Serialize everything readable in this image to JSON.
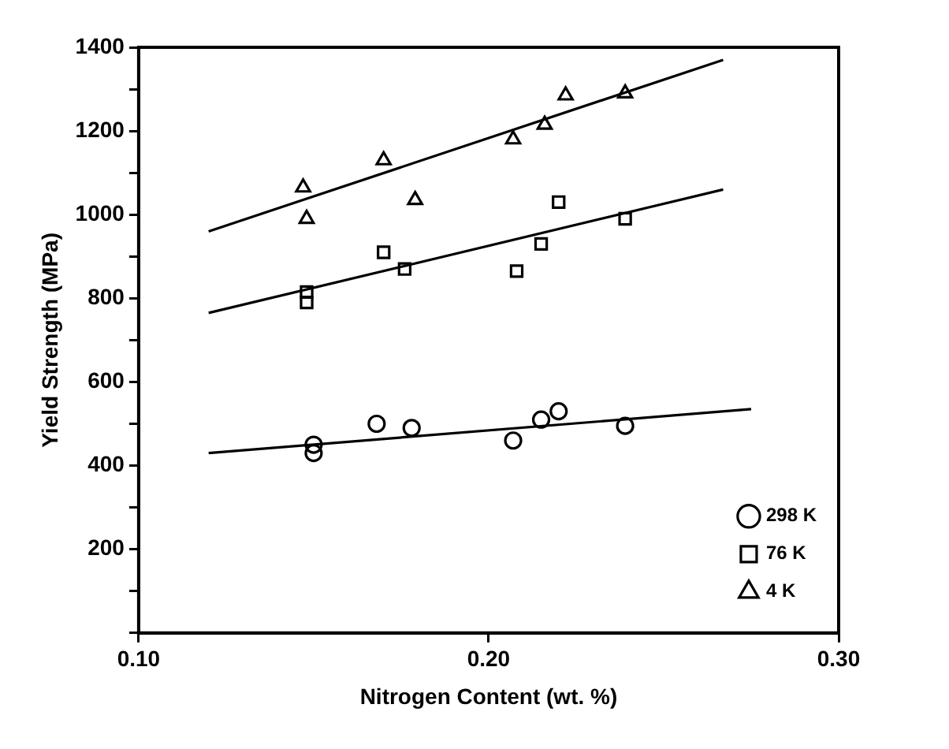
{
  "chart_data": {
    "type": "scatter",
    "xlabel": "Nitrogen Content (wt. %)",
    "ylabel": "Yield Strength (MPa)",
    "xlim": [
      0.1,
      0.3
    ],
    "xticks": [
      {
        "value": 0.1,
        "label": "0.10"
      },
      {
        "value": 0.2,
        "label": "0.20"
      },
      {
        "value": 0.3,
        "label": "0.30"
      }
    ],
    "ylim": [
      0,
      1400
    ],
    "yticks": [
      {
        "value": 0,
        "label": null
      },
      {
        "value": 100,
        "label": null
      },
      200,
      {
        "value": 300,
        "label": null
      },
      400,
      {
        "value": 500,
        "label": null
      },
      600,
      {
        "value": 700,
        "label": null
      },
      800,
      {
        "value": 900,
        "label": null
      },
      1000,
      {
        "value": 1100,
        "label": null
      },
      1200,
      {
        "value": 1300,
        "label": null
      },
      1400
    ],
    "grid": false,
    "legend": "bottom right",
    "series": [
      {
        "name": "298 K",
        "color": "#000000",
        "marker": "circle",
        "x": [
          0.15,
          0.15,
          0.168,
          0.178,
          0.207,
          0.215,
          0.22,
          0.239
        ],
        "values": [
          450,
          430,
          500,
          490,
          460,
          510,
          530,
          495
        ]
      },
      {
        "name": "76 K",
        "color": "#000000",
        "marker": "square",
        "x": [
          0.148,
          0.148,
          0.17,
          0.176,
          0.208,
          0.215,
          0.22,
          0.239
        ],
        "values": [
          815,
          790,
          910,
          870,
          865,
          930,
          1030,
          990
        ]
      },
      {
        "name": "4 K",
        "color": "#000000",
        "marker": "triangle",
        "x": [
          0.147,
          0.148,
          0.17,
          0.179,
          0.207,
          0.216,
          0.222,
          0.239
        ],
        "values": [
          1065,
          990,
          1130,
          1035,
          1180,
          1215,
          1285,
          1290
        ]
      },
      {
        "type": "line",
        "color": "#000000",
        "marker": "none",
        "x": [
          0.12,
          0.275
        ],
        "values": [
          430,
          535
        ]
      },
      {
        "type": "line",
        "color": "#000000",
        "marker": "none",
        "x": [
          0.12,
          0.267
        ],
        "values": [
          765,
          1060
        ]
      },
      {
        "type": "line",
        "color": "#000000",
        "marker": "none",
        "x": [
          0.12,
          0.267
        ],
        "values": [
          960,
          1370
        ]
      }
    ]
  }
}
